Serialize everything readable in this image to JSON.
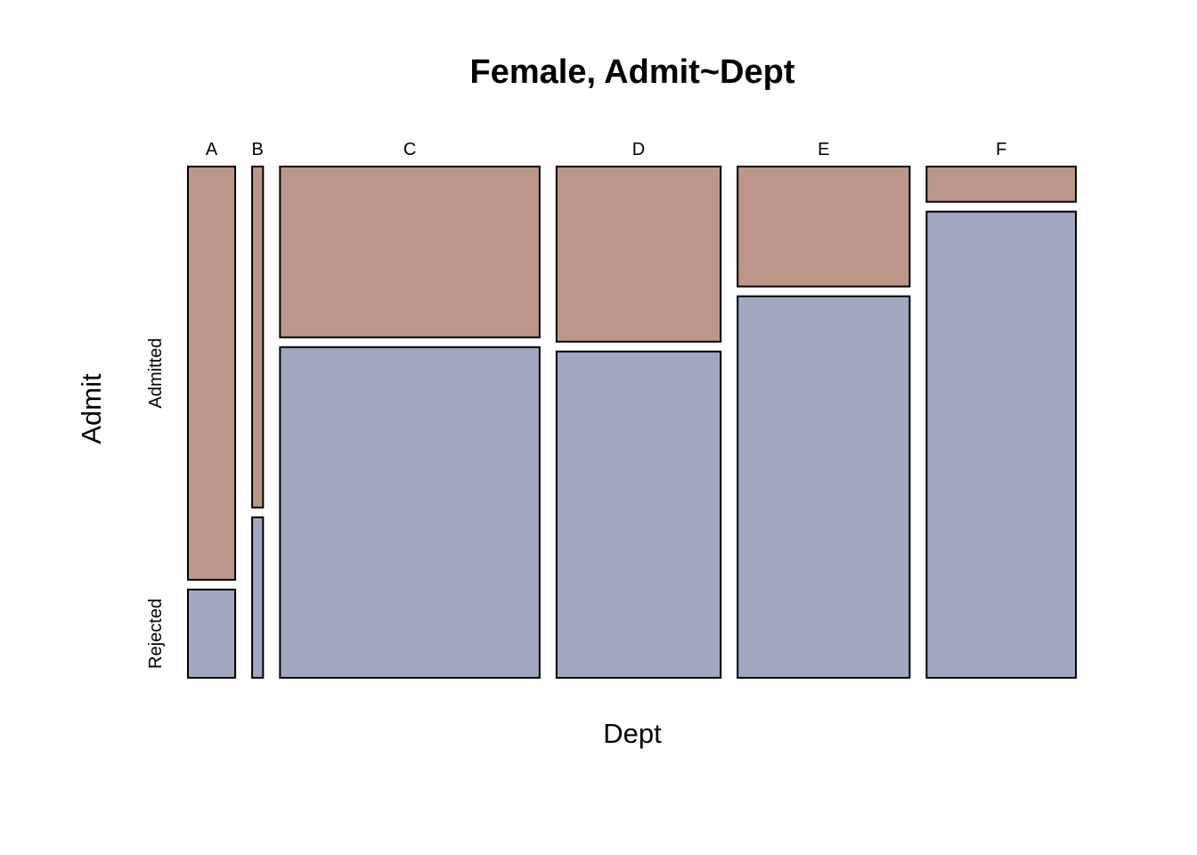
{
  "chart_data": {
    "type": "mosaic",
    "title": "Female, Admit~Dept",
    "xlabel": "Dept",
    "ylabel": "Admit",
    "categories": [
      "A",
      "B",
      "C",
      "D",
      "E",
      "F"
    ],
    "levels": [
      "Admitted",
      "Rejected"
    ],
    "counts": {
      "Admitted": [
        89,
        17,
        202,
        131,
        94,
        24
      ],
      "Rejected": [
        19,
        8,
        391,
        244,
        299,
        317
      ]
    },
    "colors": {
      "Admitted": "#bc9689",
      "Rejected": "#a1a8c0"
    },
    "grid": false,
    "legend": "none"
  }
}
